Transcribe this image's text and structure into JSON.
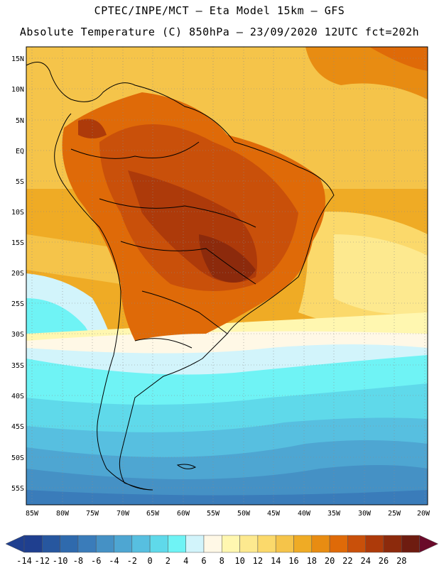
{
  "header": {
    "line1": "CPTEC/INPE/MCT –  Eta Model 15km – GFS",
    "line2": "Absolute Temperature (C) 850hPa – 23/09/2020 12UTC fct=202h"
  },
  "map": {
    "lat_labels": [
      "15N",
      "10N",
      "5N",
      "EQ",
      "5S",
      "10S",
      "15S",
      "20S",
      "25S",
      "30S",
      "35S",
      "40S",
      "45S",
      "50S",
      "55S"
    ],
    "lon_labels": [
      "85W",
      "80W",
      "75W",
      "70W",
      "65W",
      "60W",
      "55W",
      "50W",
      "45W",
      "40W",
      "35W",
      "30W",
      "25W",
      "20W"
    ]
  },
  "colorbar": {
    "labels": [
      "-14",
      "-12",
      "-10",
      "-8",
      "-6",
      "-4",
      "-2",
      "0",
      "2",
      "4",
      "6",
      "8",
      "10",
      "12",
      "14",
      "16",
      "18",
      "20",
      "22",
      "24",
      "26",
      "28"
    ],
    "colors": [
      "#1f3f8f",
      "#27579f",
      "#2f6aad",
      "#3a7cba",
      "#4591c5",
      "#4ea6d2",
      "#57bfe0",
      "#5fd9ea",
      "#6ff3f5",
      "#d2f4fb",
      "#fff8e6",
      "#fff7b0",
      "#fde98f",
      "#fbd96b",
      "#f5c44a",
      "#efab25",
      "#e88c12",
      "#df6a08",
      "#c9500a",
      "#ad3a0a",
      "#8c2a0c",
      "#6e1c10"
    ]
  }
}
